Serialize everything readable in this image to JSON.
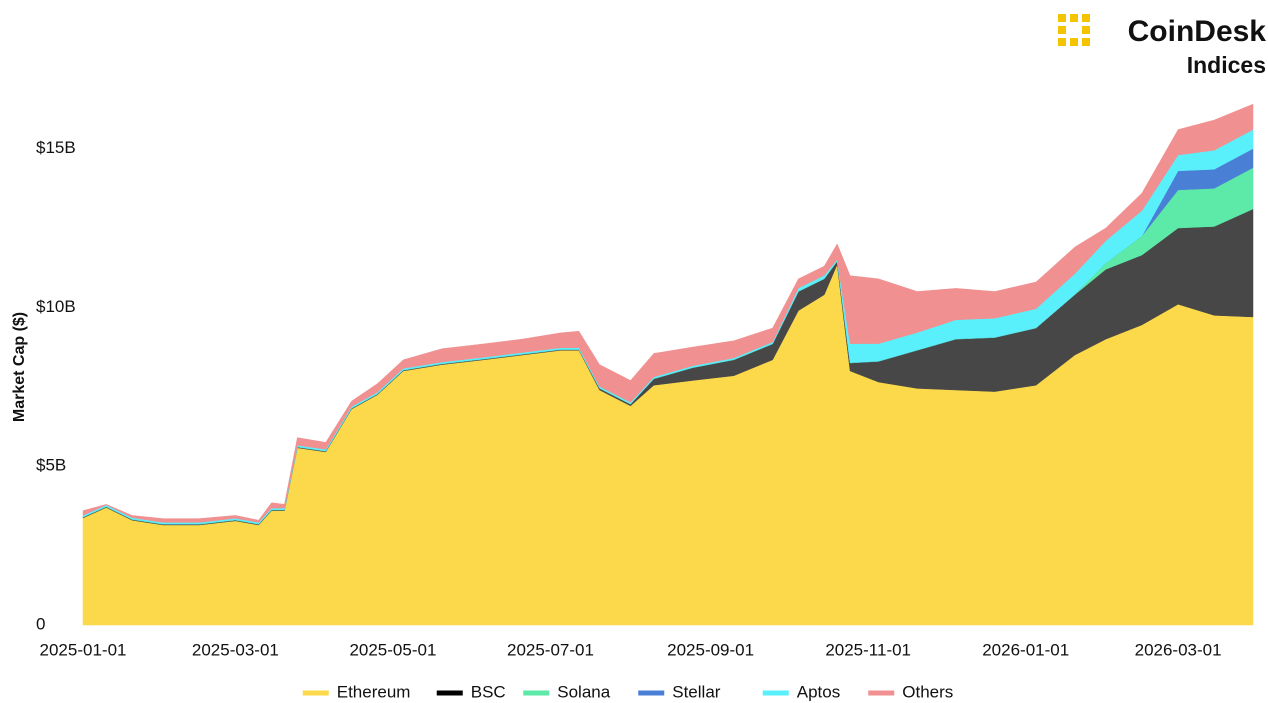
{
  "logo": {
    "name": "CoinDesk",
    "subtitle": "Indices"
  },
  "chart_data": {
    "type": "stacked_area",
    "y_label": "Market Cap ($)",
    "x": [
      "2025-01-01",
      "2025-01-10",
      "2025-01-20",
      "2025-02-01",
      "2025-02-15",
      "2025-03-01",
      "2025-03-10",
      "2025-03-15",
      "2025-03-20",
      "2025-03-25",
      "2025-04-05",
      "2025-04-15",
      "2025-04-25",
      "2025-05-05",
      "2025-05-20",
      "2025-06-05",
      "2025-06-20",
      "2025-07-05",
      "2025-07-12",
      "2025-07-20",
      "2025-08-01",
      "2025-08-10",
      "2025-08-25",
      "2025-09-10",
      "2025-09-25",
      "2025-10-05",
      "2025-10-15",
      "2025-10-20",
      "2025-10-25",
      "2025-11-05",
      "2025-11-20",
      "2025-12-05",
      "2025-12-20",
      "2026-01-05",
      "2026-01-20",
      "2026-02-01",
      "2026-02-15",
      "2026-03-01",
      "2026-03-15",
      "2026-03-30"
    ],
    "xlim": [
      "2025-01-01",
      "2026-03-30"
    ],
    "xticks": [
      "2025-01-01",
      "2025-03-01",
      "2025-05-01",
      "2025-07-01",
      "2025-09-01",
      "2025-11-01",
      "2026-01-01",
      "2026-03-01"
    ],
    "ylim": [
      0,
      16.5
    ],
    "yticks": [
      0,
      {
        "value": 5,
        "label": "$5B"
      },
      {
        "value": 10,
        "label": "$10B"
      },
      {
        "value": 15,
        "label": "$15B"
      }
    ],
    "legend": "bottom",
    "series": [
      {
        "name": "Ethereum",
        "color": "#fcd94a",
        "values": [
          3.37,
          3.7,
          3.3,
          3.15,
          3.15,
          3.28,
          3.15,
          3.6,
          3.6,
          5.58,
          5.45,
          6.8,
          7.25,
          8.0,
          8.2,
          8.35,
          8.5,
          8.65,
          8.65,
          7.4,
          6.9,
          7.55,
          7.7,
          7.85,
          8.35,
          9.9,
          10.4,
          11.35,
          8.0,
          7.65,
          7.45,
          7.4,
          7.35,
          7.55,
          8.5,
          9.0,
          9.45,
          10.1,
          9.75,
          9.7
        ]
      },
      {
        "name": "BSC",
        "color": "#474747",
        "values": [
          0.02,
          0.02,
          0.02,
          0.02,
          0.02,
          0.02,
          0.02,
          0.02,
          0.02,
          0.02,
          0.02,
          0.02,
          0.02,
          0.02,
          0.02,
          0.02,
          0.02,
          0.02,
          0.02,
          0.05,
          0.05,
          0.2,
          0.4,
          0.5,
          0.5,
          0.6,
          0.5,
          0.1,
          0.25,
          0.65,
          1.2,
          1.6,
          1.7,
          1.8,
          1.9,
          2.2,
          2.2,
          2.4,
          2.8,
          3.4
        ]
      },
      {
        "name": "Solana",
        "color": "#5de9a8",
        "values": [
          0.01,
          0.01,
          0.01,
          0.01,
          0.01,
          0.01,
          0.01,
          0.01,
          0.01,
          0.01,
          0.01,
          0.01,
          0.01,
          0.01,
          0.01,
          0.01,
          0.01,
          0.01,
          0.01,
          0.01,
          0.01,
          0.01,
          0.01,
          0.01,
          0.01,
          0.01,
          0.01,
          0.01,
          0.01,
          0.01,
          0.01,
          0.01,
          0.01,
          0.01,
          0.01,
          0.2,
          0.6,
          1.2,
          1.2,
          1.3
        ]
      },
      {
        "name": "Stellar",
        "color": "#4a7fd6",
        "values": [
          0,
          0,
          0,
          0,
          0,
          0,
          0,
          0,
          0,
          0,
          0,
          0,
          0,
          0,
          0,
          0,
          0,
          0,
          0,
          0,
          0,
          0,
          0,
          0,
          0,
          0,
          0,
          0,
          0,
          0,
          0,
          0,
          0,
          0,
          0,
          0,
          0,
          0.6,
          0.6,
          0.6
        ]
      },
      {
        "name": "Aptos",
        "color": "#5af0fb",
        "values": [
          0.05,
          0.05,
          0.05,
          0.05,
          0.05,
          0.05,
          0.05,
          0.05,
          0.05,
          0.05,
          0.05,
          0.05,
          0.05,
          0.05,
          0.05,
          0.05,
          0.05,
          0.05,
          0.05,
          0.05,
          0.05,
          0.05,
          0.05,
          0.05,
          0.05,
          0.1,
          0.1,
          0.05,
          0.6,
          0.55,
          0.55,
          0.6,
          0.6,
          0.6,
          0.65,
          0.7,
          0.8,
          0.5,
          0.6,
          0.6
        ]
      },
      {
        "name": "Others",
        "color": "#f09090",
        "values": [
          0.15,
          0.02,
          0.07,
          0.12,
          0.12,
          0.09,
          0.07,
          0.17,
          0.12,
          0.24,
          0.22,
          0.17,
          0.27,
          0.27,
          0.42,
          0.42,
          0.42,
          0.47,
          0.52,
          0.69,
          0.69,
          0.74,
          0.59,
          0.54,
          0.44,
          0.29,
          0.29,
          0.49,
          2.14,
          2.04,
          1.29,
          0.99,
          0.84,
          0.84,
          0.84,
          0.4,
          0.55,
          0.8,
          0.95,
          0.8
        ]
      }
    ]
  }
}
